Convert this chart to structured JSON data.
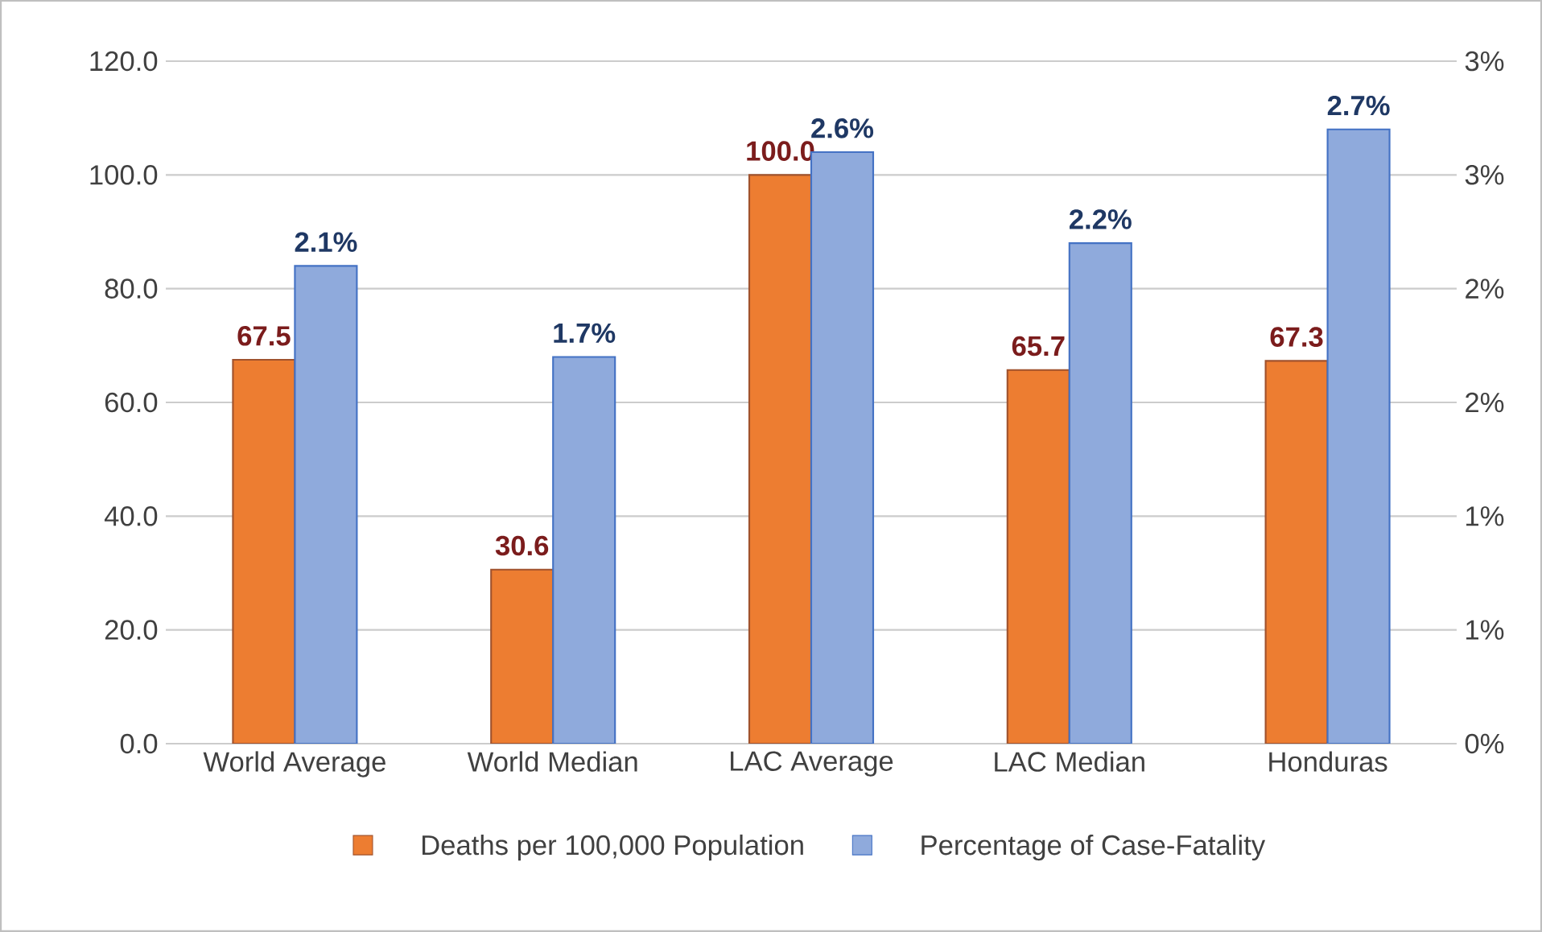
{
  "chart_data": {
    "type": "bar",
    "categories": [
      "World Average",
      "World Median",
      "LAC Average",
      "LAC Median",
      "Honduras"
    ],
    "series": [
      {
        "name": "Deaths per 100,000 Population",
        "color": "#ed7d31",
        "values": [
          67.5,
          30.6,
          100.0,
          65.7,
          67.3
        ],
        "value_labels": [
          "67.5",
          "30.6",
          "100.0",
          "65.7",
          "67.3"
        ]
      },
      {
        "name": "Percentage of Case-Fatality",
        "color": "#8faadc",
        "axis": "y2",
        "values": [
          2.1,
          1.7,
          2.6,
          2.2,
          2.7
        ],
        "value_labels": [
          "2.1%",
          "1.7%",
          "2.6%",
          "2.2%",
          "2.7%"
        ]
      }
    ],
    "ylim": [
      0,
      120
    ],
    "yticks": [
      {
        "value": 0,
        "label": "0.0"
      },
      {
        "value": 20,
        "label": "20.0"
      },
      {
        "value": 40,
        "label": "40.0"
      },
      {
        "value": 60,
        "label": "60.0"
      },
      {
        "value": 80,
        "label": "80.0"
      },
      {
        "value": 100,
        "label": "100.0"
      },
      {
        "value": 120,
        "label": "120.0"
      }
    ],
    "y2lim": [
      0,
      3
    ],
    "y2ticks": [
      {
        "value": 0,
        "label": "0%"
      },
      {
        "value": 0.5,
        "label": "1%"
      },
      {
        "value": 1,
        "label": "1%"
      },
      {
        "value": 1.5,
        "label": "2%"
      },
      {
        "value": 2,
        "label": "2%"
      },
      {
        "value": 2.5,
        "label": "3%"
      },
      {
        "value": 3,
        "label": "3%"
      }
    ],
    "grid": "y",
    "legend": "bottom"
  }
}
